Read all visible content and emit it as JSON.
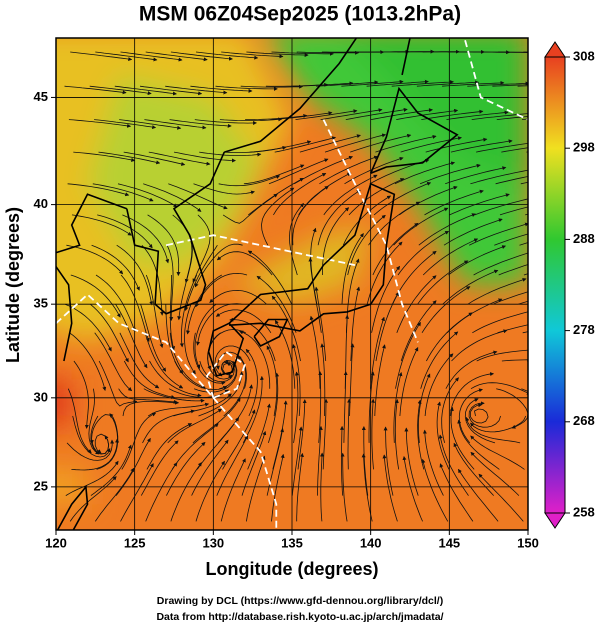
{
  "title": "MSM 06Z04Sep2025 (1013.2hPa)",
  "map": {
    "xlabel": "Longitude (degrees)",
    "ylabel": "Latitude  (degrees)",
    "xlim": [
      120,
      150
    ],
    "ylim": [
      22.5,
      47.6
    ],
    "xticks": [
      120,
      125,
      130,
      135,
      140,
      145,
      150
    ],
    "yticks": [
      25,
      30,
      35,
      40,
      45
    ],
    "grid": true
  },
  "colorbar": {
    "lim": [
      258,
      308
    ],
    "ticks": [
      258,
      268,
      278,
      288,
      298,
      308
    ]
  },
  "footer": [
    "Drawing by DCL (https://www.gfd-dennou.org/library/dcl/)",
    "Data from http://database.rish.kyoto-u.ac.jp/arch/jmadata/"
  ]
}
